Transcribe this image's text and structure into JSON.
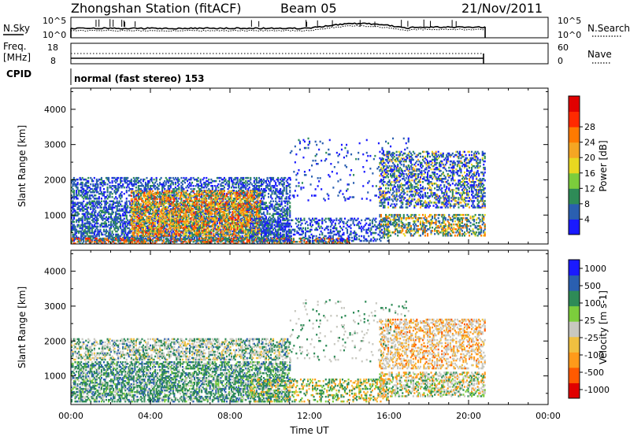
{
  "header": {
    "station": "Zhongshan Station (fitACF)",
    "beam": "Beam 05",
    "date": "21/Nov/2011"
  },
  "top_panel": {
    "nsky_label": "N.Sky",
    "nsky_ticks": [
      "10^5",
      "10^0"
    ],
    "nsearch_label": "N.Search",
    "nsearch_ticks": [
      "10^5",
      "10^0"
    ]
  },
  "freq_panel": {
    "freq_label_1": "Freq.",
    "freq_label_2": "[MHz]",
    "freq_ticks": [
      "18",
      "8"
    ],
    "nave_label": "Nave",
    "nave_ticks": [
      "60",
      "0"
    ]
  },
  "cpid": {
    "label": "CPID",
    "value": "normal (fast stereo) 153"
  },
  "colors": {
    "power_scale": [
      "#1a1aff",
      "#2a5fb0",
      "#2e8b57",
      "#7ccd3c",
      "#e8d820",
      "#f5a623",
      "#ff7a00",
      "#ff2a00",
      "#e00000"
    ],
    "velocity_scale": [
      "#e00000",
      "#ff5a00",
      "#ff9a1a",
      "#f0c040",
      "#c8c8c0",
      "#7ccd3c",
      "#2e8b57",
      "#2a5fb0",
      "#1a1aff"
    ]
  },
  "chart_data": [
    {
      "type": "heatmap",
      "title": "",
      "quantity": "Power",
      "xlabel": "",
      "ylabel": "Slant Range [km]",
      "xlim": [
        "00:00",
        "24:00"
      ],
      "ylim": [
        180,
        4600
      ],
      "x_ticks": [
        "00:00",
        "04:00",
        "08:00",
        "12:00",
        "16:00",
        "20:00",
        "00:00"
      ],
      "y_ticks": [
        1000,
        2000,
        3000,
        4000
      ],
      "colorbar_label": "Power [dB]",
      "colorbar_ticks": [
        "4",
        "8",
        "12",
        "16",
        "20",
        "24",
        "28"
      ],
      "data_end_time": "20:50"
    },
    {
      "type": "heatmap",
      "title": "",
      "quantity": "Velocity",
      "xlabel": "Time UT",
      "ylabel": "Slant Range [km]",
      "xlim": [
        "00:00",
        "24:00"
      ],
      "ylim": [
        180,
        4600
      ],
      "x_ticks": [
        "00:00",
        "04:00",
        "08:00",
        "12:00",
        "16:00",
        "20:00",
        "00:00"
      ],
      "y_ticks": [
        1000,
        2000,
        3000,
        4000
      ],
      "colorbar_label": "Velocity [m s-1]",
      "colorbar_ticks": [
        "1000",
        "500",
        "100",
        "25",
        "-25",
        "-100",
        "-500",
        "-1000"
      ],
      "data_end_time": "20:50"
    }
  ]
}
